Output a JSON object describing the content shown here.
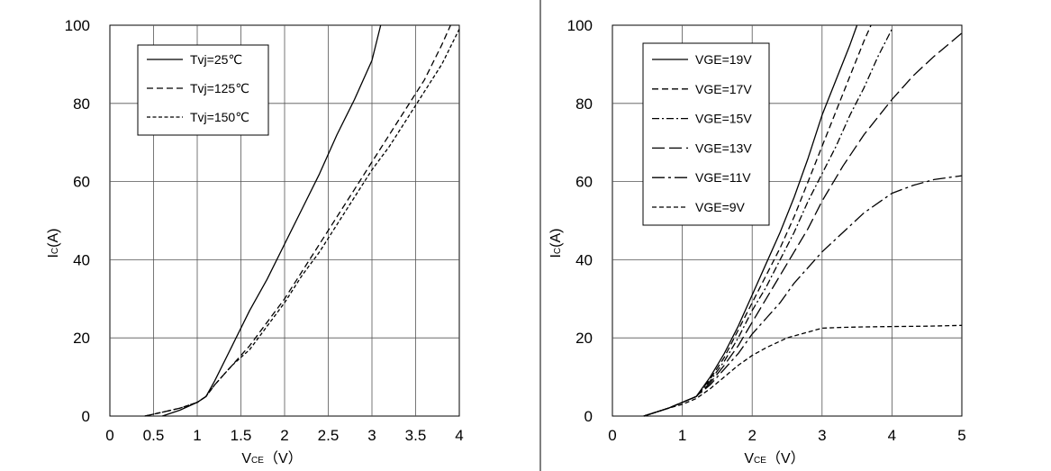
{
  "chart_data": [
    {
      "type": "line",
      "xlabel_main": "V",
      "xlabel_sub": "CE",
      "xlabel_unit": "（V）",
      "ylabel_main": "I",
      "ylabel_sub": "C",
      "ylabel_unit": "(A)",
      "xlim": [
        0,
        4
      ],
      "ylim": [
        0,
        100
      ],
      "xticks": [
        "0",
        "0.5",
        "1",
        "1.5",
        "2",
        "2.5",
        "3",
        "3.5",
        "4"
      ],
      "yticks": [
        "0",
        "20",
        "40",
        "60",
        "80",
        "100"
      ],
      "grid": true,
      "legend": "top-left",
      "series": [
        {
          "name": "Tvj=25℃",
          "dash": "solid",
          "x": [
            0.6,
            0.8,
            1.0,
            1.1,
            1.2,
            1.4,
            1.6,
            1.8,
            2.0,
            2.2,
            2.4,
            2.6,
            2.8,
            3.0,
            3.1
          ],
          "y": [
            0,
            1.5,
            3.5,
            5,
            9,
            18,
            27,
            35,
            44,
            53,
            62,
            72,
            81,
            91,
            100
          ]
        },
        {
          "name": "Tvj=125℃",
          "dash": "dash",
          "x": [
            0.4,
            0.6,
            0.8,
            1.0,
            1.1,
            1.2,
            1.4,
            1.6,
            1.8,
            2.0,
            2.2,
            2.4,
            2.6,
            2.8,
            3.0,
            3.2,
            3.4,
            3.6,
            3.8,
            3.9
          ],
          "y": [
            0,
            1,
            2,
            3.5,
            5,
            8,
            13,
            18,
            24,
            30,
            37,
            44,
            51,
            58,
            65,
            72,
            79,
            86,
            95,
            100
          ]
        },
        {
          "name": "Tvj=150℃",
          "dash": "dot",
          "x": [
            0.4,
            0.6,
            0.8,
            1.0,
            1.1,
            1.2,
            1.4,
            1.6,
            1.8,
            2.0,
            2.2,
            2.4,
            2.6,
            2.8,
            3.0,
            3.2,
            3.4,
            3.6,
            3.8,
            4.0
          ],
          "y": [
            0,
            1,
            2,
            3.5,
            5,
            8,
            13,
            17,
            23,
            29,
            36,
            42,
            49,
            56,
            63,
            69,
            76,
            83,
            90,
            99
          ]
        }
      ]
    },
    {
      "type": "line",
      "xlabel_main": "V",
      "xlabel_sub": "CE",
      "xlabel_unit": "（V）",
      "ylabel_main": "I",
      "ylabel_sub": "C",
      "ylabel_unit": "(A)",
      "xlim": [
        0,
        5
      ],
      "ylim": [
        0,
        100
      ],
      "xticks": [
        "0",
        "1",
        "2",
        "3",
        "4",
        "5"
      ],
      "yticks": [
        "0",
        "20",
        "40",
        "60",
        "80",
        "100"
      ],
      "grid": true,
      "legend": "top-left",
      "series": [
        {
          "name": "VGE=19V",
          "dash": "solid",
          "x": [
            0.45,
            0.8,
            1.0,
            1.2,
            1.4,
            1.6,
            1.8,
            2.0,
            2.2,
            2.4,
            2.6,
            2.8,
            3.0,
            3.2,
            3.4,
            3.5
          ],
          "y": [
            0,
            2,
            3.5,
            5,
            10,
            16,
            23,
            31,
            39,
            47,
            56,
            66,
            77,
            86,
            95,
            100
          ]
        },
        {
          "name": "VGE=17V",
          "dash": "dash",
          "x": [
            0.45,
            0.8,
            1.0,
            1.2,
            1.4,
            1.6,
            1.8,
            2.0,
            2.2,
            2.4,
            2.6,
            2.8,
            3.0,
            3.2,
            3.4,
            3.6,
            3.7
          ],
          "y": [
            0,
            2,
            3.5,
            5,
            9.5,
            15,
            22,
            29,
            36,
            43,
            51,
            60,
            69,
            78,
            87,
            96,
            100
          ]
        },
        {
          "name": "VGE=15V",
          "dash": "dashdot",
          "x": [
            0.45,
            0.8,
            1.0,
            1.2,
            1.4,
            1.6,
            1.8,
            2.0,
            2.2,
            2.4,
            2.6,
            2.8,
            3.0,
            3.2,
            3.4,
            3.6,
            3.8,
            4.0
          ],
          "y": [
            0,
            2,
            3.5,
            5,
            9,
            14,
            20,
            27,
            33,
            40,
            47,
            55,
            62,
            69,
            77,
            84,
            92,
            99
          ]
        },
        {
          "name": "VGE=13V",
          "dash": "longdash",
          "x": [
            0.45,
            0.8,
            1.0,
            1.2,
            1.4,
            1.6,
            1.8,
            2.0,
            2.2,
            2.4,
            2.6,
            2.8,
            3.0,
            3.3,
            3.6,
            4.0,
            4.3,
            4.6,
            5.0
          ],
          "y": [
            0,
            2,
            3.5,
            5,
            8.5,
            13,
            18,
            24,
            30,
            36,
            42,
            48,
            55,
            64,
            72,
            81,
            87,
            92,
            98
          ]
        },
        {
          "name": "VGE=11V",
          "dash": "longdashdot",
          "x": [
            0.45,
            0.8,
            1.0,
            1.2,
            1.4,
            1.6,
            1.8,
            2.0,
            2.2,
            2.4,
            2.6,
            2.8,
            3.0,
            3.3,
            3.6,
            4.0,
            4.3,
            4.6,
            5.0
          ],
          "y": [
            0,
            2,
            3.5,
            5,
            8,
            12,
            16,
            21,
            25,
            29,
            34,
            38,
            42,
            47,
            52,
            57,
            59,
            60.5,
            61.5
          ]
        },
        {
          "name": "VGE=9V",
          "dash": "shortdash",
          "x": [
            0.45,
            0.8,
            1.0,
            1.2,
            1.4,
            1.6,
            1.8,
            2.0,
            2.2,
            2.5,
            2.8,
            3.0,
            3.3,
            3.6,
            4.0,
            4.5,
            5.0
          ],
          "y": [
            0,
            2,
            3,
            4.5,
            7,
            10,
            13,
            15.5,
            17.5,
            20,
            21.5,
            22.5,
            22.7,
            22.8,
            22.9,
            23,
            23.2
          ]
        }
      ]
    }
  ]
}
